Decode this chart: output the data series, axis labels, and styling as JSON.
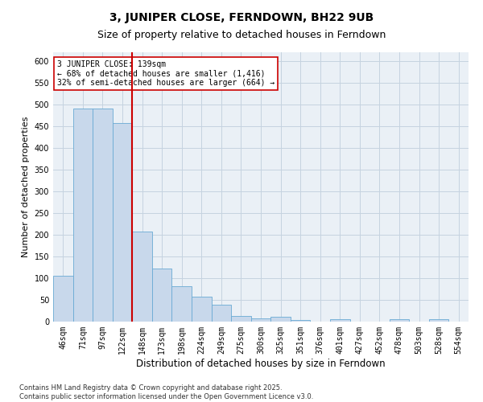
{
  "title": "3, JUNIPER CLOSE, FERNDOWN, BH22 9UB",
  "subtitle": "Size of property relative to detached houses in Ferndown",
  "xlabel": "Distribution of detached houses by size in Ferndown",
  "ylabel": "Number of detached properties",
  "footnote": "Contains HM Land Registry data © Crown copyright and database right 2025.\nContains public sector information licensed under the Open Government Licence v3.0.",
  "categories": [
    "46sqm",
    "71sqm",
    "97sqm",
    "122sqm",
    "148sqm",
    "173sqm",
    "198sqm",
    "224sqm",
    "249sqm",
    "275sqm",
    "300sqm",
    "325sqm",
    "351sqm",
    "376sqm",
    "401sqm",
    "427sqm",
    "452sqm",
    "478sqm",
    "503sqm",
    "528sqm",
    "554sqm"
  ],
  "values": [
    105,
    490,
    490,
    458,
    207,
    122,
    82,
    57,
    38,
    13,
    8,
    11,
    4,
    0,
    5,
    0,
    0,
    5,
    0,
    5,
    0
  ],
  "bar_color": "#c8d8eb",
  "bar_edgecolor": "#6aaad4",
  "grid_color": "#c5d3e0",
  "bg_color": "#eaf0f6",
  "vline_x": 3.5,
  "vline_color": "#cc0000",
  "annotation_text": "3 JUNIPER CLOSE: 139sqm\n← 68% of detached houses are smaller (1,416)\n32% of semi-detached houses are larger (664) →",
  "annotation_box_edgecolor": "#cc0000",
  "ylim": [
    0,
    620
  ],
  "yticks": [
    0,
    50,
    100,
    150,
    200,
    250,
    300,
    350,
    400,
    450,
    500,
    550,
    600
  ],
  "title_fontsize": 10,
  "subtitle_fontsize": 9,
  "xlabel_fontsize": 8.5,
  "ylabel_fontsize": 8,
  "tick_fontsize": 7,
  "annot_fontsize": 7,
  "footnote_fontsize": 6
}
